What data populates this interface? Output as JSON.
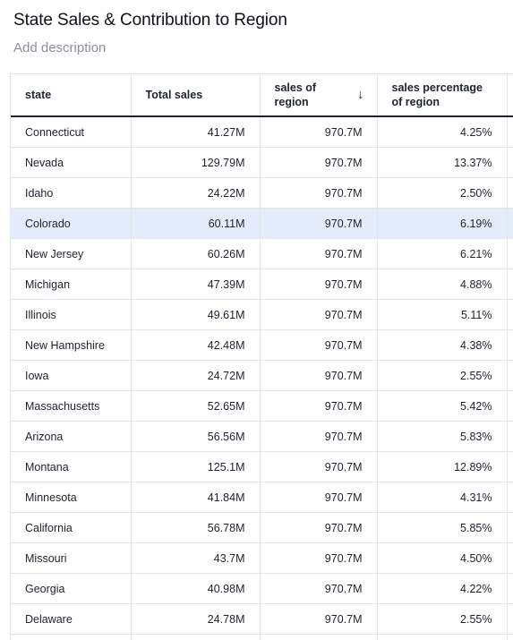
{
  "header": {
    "title": "State Sales & Contribution to Region",
    "description_placeholder": "Add description"
  },
  "table": {
    "columns": [
      {
        "key": "state",
        "label": "state"
      },
      {
        "key": "total_sales",
        "label": "Total sales"
      },
      {
        "key": "sales_of_region",
        "label": "sales of region",
        "sort": "desc",
        "sort_icon": "arrow-down-icon"
      },
      {
        "key": "sales_percentage_of_region",
        "label": "sales percentage of region"
      }
    ],
    "rows": [
      {
        "state": "Connecticut",
        "total_sales": "41.27M",
        "sales_of_region": "970.7M",
        "pct": "4.25%"
      },
      {
        "state": "Nevada",
        "total_sales": "129.79M",
        "sales_of_region": "970.7M",
        "pct": "13.37%"
      },
      {
        "state": "Idaho",
        "total_sales": "24.22M",
        "sales_of_region": "970.7M",
        "pct": "2.50%"
      },
      {
        "state": "Colorado",
        "total_sales": "60.11M",
        "sales_of_region": "970.7M",
        "pct": "6.19%",
        "selected": true
      },
      {
        "state": "New Jersey",
        "total_sales": "60.26M",
        "sales_of_region": "970.7M",
        "pct": "6.21%"
      },
      {
        "state": "Michigan",
        "total_sales": "47.39M",
        "sales_of_region": "970.7M",
        "pct": "4.88%"
      },
      {
        "state": "Illinois",
        "total_sales": "49.61M",
        "sales_of_region": "970.7M",
        "pct": "5.11%"
      },
      {
        "state": "New Hampshire",
        "total_sales": "42.48M",
        "sales_of_region": "970.7M",
        "pct": "4.38%"
      },
      {
        "state": "Iowa",
        "total_sales": "24.72M",
        "sales_of_region": "970.7M",
        "pct": "2.55%"
      },
      {
        "state": "Massachusetts",
        "total_sales": "52.65M",
        "sales_of_region": "970.7M",
        "pct": "5.42%"
      },
      {
        "state": "Arizona",
        "total_sales": "56.56M",
        "sales_of_region": "970.7M",
        "pct": "5.83%"
      },
      {
        "state": "Montana",
        "total_sales": "125.1M",
        "sales_of_region": "970.7M",
        "pct": "12.89%"
      },
      {
        "state": "Minnesota",
        "total_sales": "41.84M",
        "sales_of_region": "970.7M",
        "pct": "4.31%"
      },
      {
        "state": "California",
        "total_sales": "56.78M",
        "sales_of_region": "970.7M",
        "pct": "5.85%"
      },
      {
        "state": "Missouri",
        "total_sales": "43.7M",
        "sales_of_region": "970.7M",
        "pct": "4.50%"
      },
      {
        "state": "Georgia",
        "total_sales": "40.98M",
        "sales_of_region": "970.7M",
        "pct": "4.22%"
      },
      {
        "state": "Delaware",
        "total_sales": "24.78M",
        "sales_of_region": "970.7M",
        "pct": "2.55%"
      },
      {
        "state": "",
        "total_sales": "",
        "sales_of_region": "",
        "pct": ""
      }
    ]
  },
  "colors": {
    "selected_row": "#e4ecfb",
    "header_rule": "#1d232f",
    "grid": "#e3e5e8",
    "muted_text": "#8a8f99"
  }
}
